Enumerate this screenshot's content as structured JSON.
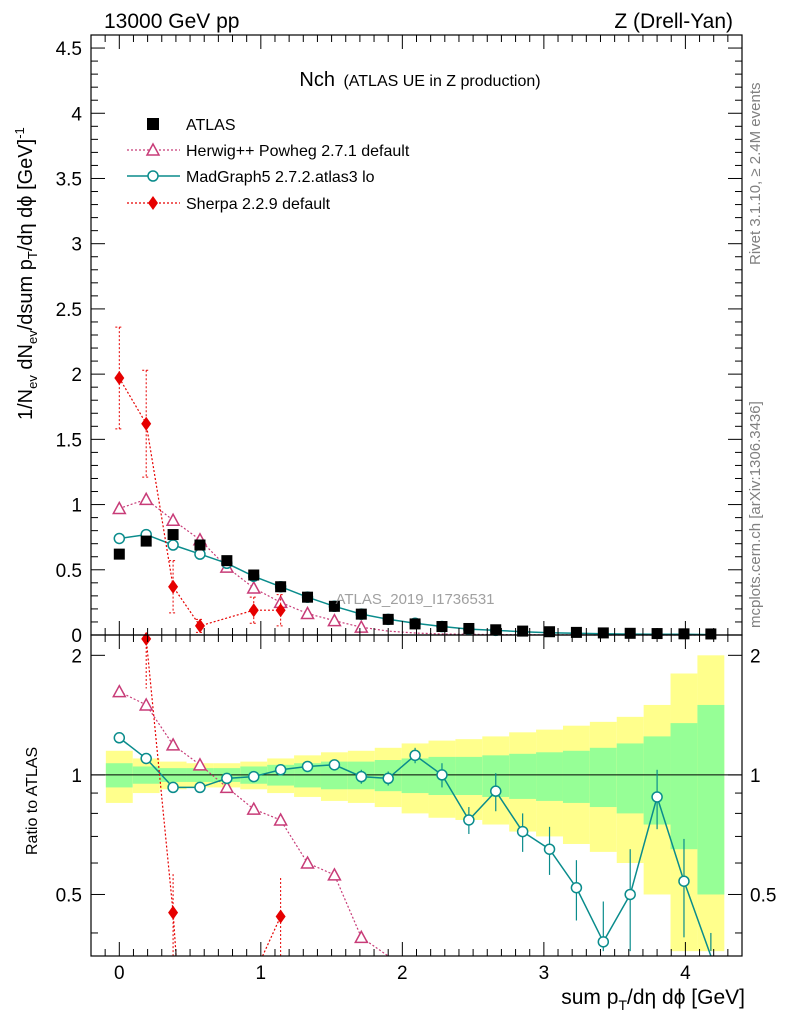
{
  "header": {
    "left": "13000 GeV pp",
    "right": "Z (Drell-Yan)"
  },
  "side_labels": {
    "rivet": "Rivet 3.1.10, ≥ 2.4M events",
    "mcplots": "mcplots.cern.ch [arXiv:1306.3436]"
  },
  "plot_title": {
    "main": "Nch",
    "sub": "(ATLAS UE in Z production)"
  },
  "watermark": "ATLAS_2019_I1736531",
  "axes": {
    "top_ylabel": "1/N_ev dN_ev/dsum p_T/dη dϕ [GeV]^-1",
    "top_ylabel_parts": {
      "a": "1/N",
      "a_sub": "ev",
      "b": " dN",
      "b_sub": "ev",
      "c": "/dsum p",
      "c_sub": "T",
      "d": "/dη dϕ  [GeV]",
      "d_sup": "-1"
    },
    "bottom_ylabel": "Ratio to ATLAS",
    "xlabel": "sum p_T/dη dϕ [GeV]",
    "xlabel_parts": {
      "a": "sum p",
      "a_sub": "T",
      "b": "/dη dϕ [GeV]"
    },
    "top_yticks": [
      "0",
      "0.5",
      "1",
      "1.5",
      "2",
      "2.5",
      "3",
      "3.5",
      "4",
      "4.5"
    ],
    "bottom_yticks": [
      "0.5",
      "1",
      "2"
    ],
    "xticks": [
      "0",
      "1",
      "2",
      "3",
      "4"
    ]
  },
  "legend": [
    {
      "label": "ATLAS",
      "color": "#000000",
      "marker": "square"
    },
    {
      "label": "Herwig++ Powheg 2.7.1 default",
      "color": "#c83c78",
      "marker": "triangle"
    },
    {
      "label": "MadGraph5 2.7.2.atlas3 lo",
      "color": "#0a8c8c",
      "marker": "circle"
    },
    {
      "label": "Sherpa 2.2.9 default",
      "color": "#e60000",
      "marker": "diamond"
    }
  ],
  "chart_data": {
    "type": "scatter",
    "xlim": [
      -0.2,
      4.4
    ],
    "top_ylim": [
      0,
      4.6
    ],
    "ratio_ylim": [
      0.35,
      2.25
    ],
    "ratio_scale": "log",
    "grid": false,
    "legend_position": "top-left",
    "x": [
      0.0,
      0.19,
      0.38,
      0.57,
      0.76,
      0.95,
      1.14,
      1.33,
      1.52,
      1.71,
      1.9,
      2.09,
      2.28,
      2.47,
      2.66,
      2.85,
      3.04,
      3.23,
      3.42,
      3.61,
      3.8,
      3.99,
      4.18
    ],
    "atlas": [
      0.62,
      0.72,
      0.77,
      0.69,
      0.57,
      0.46,
      0.37,
      0.29,
      0.22,
      0.16,
      0.12,
      0.085,
      0.065,
      0.05,
      0.04,
      0.03,
      0.025,
      0.02,
      0.016,
      0.013,
      0.011,
      0.009,
      0.008
    ],
    "series": [
      {
        "name": "Herwig++ Powheg 2.7.1 default",
        "color": "#c83c78",
        "values": [
          0.97,
          1.04,
          0.88,
          0.73,
          0.52,
          0.36,
          0.25,
          0.165,
          0.11,
          0.06,
          0.03,
          0.015,
          0.008,
          0.005,
          0.003,
          0.002,
          0.001,
          0.001,
          0.0,
          0.0,
          0.0,
          0.0,
          0.0
        ],
        "ratio": [
          1.62,
          1.5,
          1.19,
          1.06,
          0.93,
          0.82,
          0.77,
          0.6,
          0.56,
          0.39,
          0.2
        ]
      },
      {
        "name": "MadGraph5 2.7.2.atlas3 lo",
        "color": "#0a8c8c",
        "values": [
          0.74,
          0.77,
          0.69,
          0.62,
          0.55,
          0.45,
          0.37,
          0.29,
          0.22,
          0.16,
          0.12,
          0.09,
          0.065,
          0.045,
          0.035,
          0.025,
          0.018,
          0.013,
          0.009,
          0.007,
          0.006,
          0.005,
          0.003
        ],
        "ratio": [
          1.24,
          1.1,
          0.93,
          0.93,
          0.98,
          0.99,
          1.03,
          1.05,
          1.06,
          0.99,
          0.98,
          1.12,
          1.0,
          0.77,
          0.91,
          0.72,
          0.65,
          0.52,
          0.38,
          0.5,
          0.88,
          0.54,
          0.3
        ],
        "ratio_err": [
          0,
          0,
          0,
          0,
          0,
          0,
          0,
          0.03,
          0.03,
          0.04,
          0.04,
          0.05,
          0.07,
          0.06,
          0.1,
          0.08,
          0.09,
          0.09,
          0.1,
          0.15,
          0.15,
          0.15,
          0.1
        ]
      },
      {
        "name": "Sherpa 2.2.9 default",
        "color": "#e60000",
        "values": [
          1.97,
          1.62,
          0.37,
          0.07,
          null,
          0.19,
          0.19
        ],
        "err": [
          0.39,
          0.41,
          0.2,
          0.05,
          null,
          0.1,
          0.12
        ],
        "ratio": [
          null,
          2.2,
          0.45,
          null,
          null,
          null,
          0.44
        ]
      }
    ],
    "ratio_bands": {
      "inner_half_width": [
        0.07,
        0.05,
        0.04,
        0.04,
        0.04,
        0.05,
        0.06,
        0.07,
        0.08,
        0.08,
        0.09,
        0.1,
        0.11,
        0.11,
        0.12,
        0.13,
        0.14,
        0.15,
        0.17,
        0.2,
        0.25,
        0.35,
        0.5
      ],
      "outer_half_width": [
        0.15,
        0.1,
        0.08,
        0.07,
        0.07,
        0.08,
        0.1,
        0.12,
        0.14,
        0.15,
        0.17,
        0.2,
        0.22,
        0.23,
        0.25,
        0.28,
        0.3,
        0.33,
        0.36,
        0.4,
        0.5,
        0.8,
        1.0
      ]
    }
  }
}
